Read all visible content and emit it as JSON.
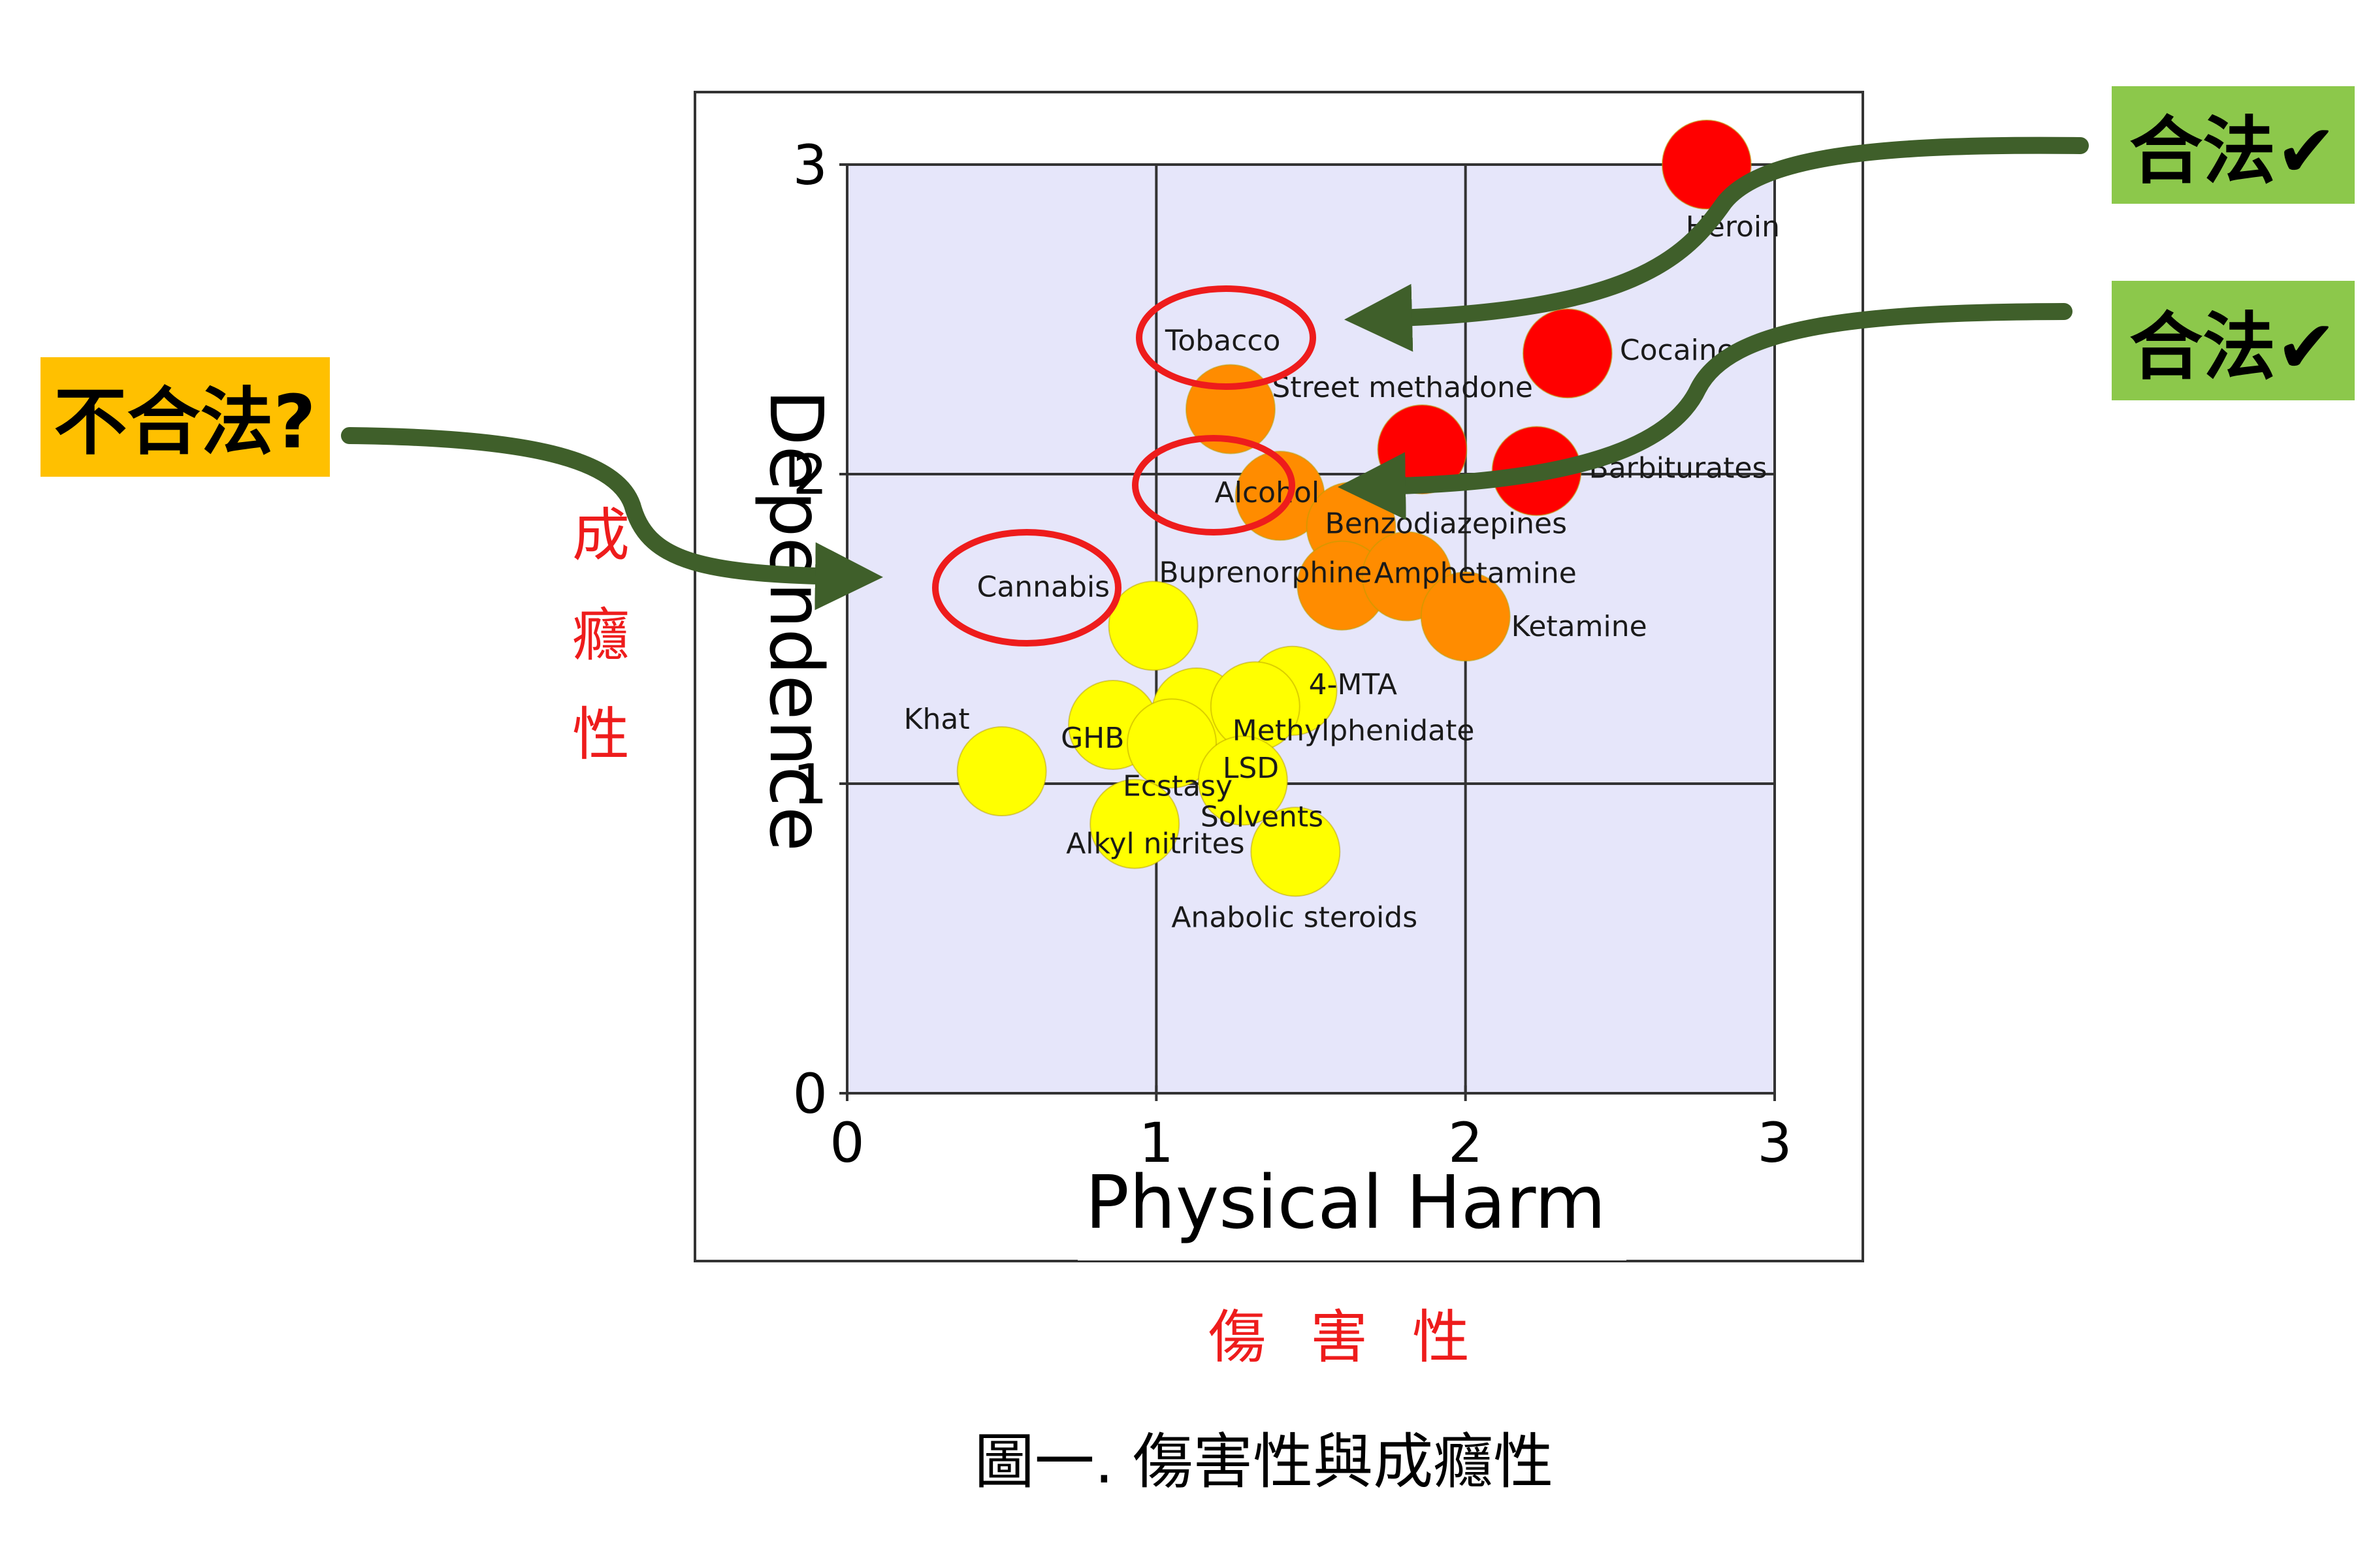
{
  "chart_data": {
    "type": "scatter",
    "xlabel": "Physical Harm",
    "ylabel": "Dependence",
    "xlim": [
      0,
      3
    ],
    "ylim": [
      0,
      3
    ],
    "x_ticks": [
      "0",
      "1",
      "2",
      "3"
    ],
    "y_ticks": [
      "0",
      "1",
      "2",
      "3"
    ],
    "grid": true,
    "background_color": "#e6e6fa",
    "colors": {
      "high": "#ff0000",
      "medium": "#ff8c00",
      "low": "#ffff00"
    },
    "points": [
      {
        "label": "Heroin",
        "x": 2.78,
        "y": 3.0,
        "color": "high"
      },
      {
        "label": "Cocaine",
        "x": 2.33,
        "y": 2.39,
        "color": "high"
      },
      {
        "label": "Street methadone",
        "x": 1.86,
        "y": 2.08,
        "color": "high"
      },
      {
        "label": "Barbiturates",
        "x": 2.23,
        "y": 2.01,
        "color": "high"
      },
      {
        "label": "Tobacco",
        "x": 1.24,
        "y": 2.21,
        "color": "medium"
      },
      {
        "label": "Alcohol",
        "x": 1.4,
        "y": 1.93,
        "color": "medium"
      },
      {
        "label": "Benzodiazepines",
        "x": 1.63,
        "y": 1.83,
        "color": "medium"
      },
      {
        "label": "Buprenorphine",
        "x": 1.6,
        "y": 1.64,
        "color": "medium"
      },
      {
        "label": "Amphetamine",
        "x": 1.81,
        "y": 1.67,
        "color": "medium"
      },
      {
        "label": "Ketamine",
        "x": 2.0,
        "y": 1.54,
        "color": "medium"
      },
      {
        "label": "Cannabis",
        "x": 0.99,
        "y": 1.51,
        "color": "low"
      },
      {
        "label": "LSD",
        "x": 1.13,
        "y": 1.23,
        "color": "low"
      },
      {
        "label": "4-MTA",
        "x": 1.44,
        "y": 1.3,
        "color": "low"
      },
      {
        "label": "Methylphenidate",
        "x": 1.32,
        "y": 1.25,
        "color": "low"
      },
      {
        "label": "GHB",
        "x": 0.86,
        "y": 1.19,
        "color": "low"
      },
      {
        "label": "Ecstasy",
        "x": 1.05,
        "y": 1.13,
        "color": "low"
      },
      {
        "label": "Khat",
        "x": 0.5,
        "y": 1.04,
        "color": "low"
      },
      {
        "label": "Solvents",
        "x": 1.28,
        "y": 1.01,
        "color": "low"
      },
      {
        "label": "Alkyl nitrites",
        "x": 0.93,
        "y": 0.87,
        "color": "low"
      },
      {
        "label": "Anabolic steroids",
        "x": 1.45,
        "y": 0.78,
        "color": "low"
      }
    ]
  },
  "annotations": {
    "illegal_label": "不合法?",
    "legal_label_1": "合法✔",
    "legal_label_2": "合法✔",
    "dependence_cn": [
      "成",
      "癮",
      "性"
    ],
    "harm_cn": "傷 害 性",
    "caption": "圖一.  傷害性與成癮性"
  }
}
